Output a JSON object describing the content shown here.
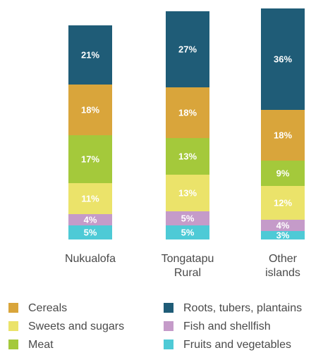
{
  "chart_data": {
    "type": "stacked-bar",
    "categories": [
      "Nukualofa",
      "Tongatapu Rural",
      "Other islands"
    ],
    "series": [
      {
        "name": "Cereals",
        "color": "#d9a53b",
        "values": [
          18,
          18,
          18
        ],
        "value_labels": [
          "18%",
          "18%",
          "18%"
        ]
      },
      {
        "name": "Sweets and sugars",
        "color": "#ebe36a",
        "values": [
          11,
          13,
          12
        ],
        "value_labels": [
          "11%",
          "13%",
          "12%"
        ]
      },
      {
        "name": "Meat",
        "color": "#a4c93b",
        "values": [
          17,
          13,
          9
        ],
        "value_labels": [
          "17%",
          "13%",
          "9%"
        ]
      },
      {
        "name": "Roots, tubers, plantains",
        "color": "#1f5c77",
        "values": [
          21,
          27,
          36
        ],
        "value_labels": [
          "21%",
          "27%",
          "36%"
        ]
      },
      {
        "name": "Fish and shellfish",
        "color": "#c59bc9",
        "values": [
          4,
          5,
          4
        ],
        "value_labels": [
          "4%",
          "5%",
          "4%"
        ]
      },
      {
        "name": "Fruits and vegetables",
        "color": "#4ecad6",
        "values": [
          5,
          5,
          3
        ],
        "value_labels": [
          "5%",
          "5%",
          "3%"
        ]
      }
    ]
  }
}
